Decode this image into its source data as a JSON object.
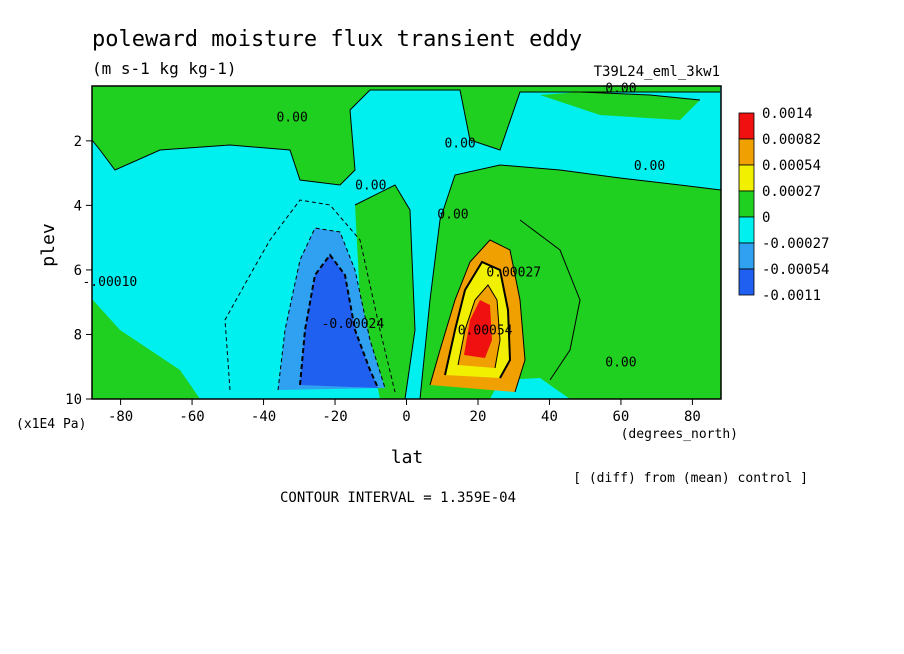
{
  "chart_data": {
    "type": "heatmap",
    "title": "poleward moisture flux transient eddy",
    "subtitle": "(m s-1 kg kg-1)",
    "run_label": "T39L24_eml_3kw1",
    "xlabel": "lat",
    "x_units": "(degrees_north)",
    "ylabel": "plev",
    "y_units": "(x1E4 Pa)",
    "xlim": [
      -88,
      88
    ],
    "ylim": [
      10,
      0.3
    ],
    "x_ticks": [
      "-80",
      "-60",
      "-40",
      "-20",
      "0",
      "20",
      "40",
      "60",
      "80"
    ],
    "x_tick_values": [
      -80,
      -60,
      -40,
      -20,
      0,
      20,
      40,
      60,
      80
    ],
    "y_ticks": [
      "2",
      "4",
      "6",
      "8",
      "10"
    ],
    "y_tick_values": [
      2,
      4,
      6,
      8,
      10
    ],
    "legend": {
      "position": "right",
      "levels": [
        "0.0014",
        "0.00082",
        "0.00054",
        "0.00027",
        "0",
        "-0.00027",
        "-0.00054",
        "-0.0011"
      ],
      "colors": [
        "#f01010",
        "#f0a000",
        "#f0f000",
        "#20d020",
        "#00f0f0",
        "#30a0f0",
        "#2060f0"
      ]
    },
    "contour_labels": [
      {
        "text": "0.00",
        "lat": -32,
        "plev": 1.4
      },
      {
        "text": "0.00",
        "lat": -10,
        "plev": 3.5
      },
      {
        "text": "0.00",
        "lat": 15,
        "plev": 2.2
      },
      {
        "text": "0.00",
        "lat": 68,
        "plev": 2.9
      },
      {
        "text": "0.00",
        "lat": 60,
        "plev": 9.0
      },
      {
        "text": "0.00",
        "lat": 60,
        "plev": 0.5
      },
      {
        "text": "0.00",
        "lat": 13,
        "plev": 4.4
      },
      {
        "text": "-.00010",
        "lat": -83,
        "plev": 6.5
      },
      {
        "text": "-0.00024",
        "lat": -15,
        "plev": 7.8
      },
      {
        "text": "0.00027",
        "lat": 30,
        "plev": 6.2
      },
      {
        "text": "0.00054",
        "lat": 22,
        "plev": 8.0
      }
    ],
    "footer_left": "CONTOUR INTERVAL = 1.359E-04",
    "footer_right": "[ (diff) from (mean) control ]"
  }
}
